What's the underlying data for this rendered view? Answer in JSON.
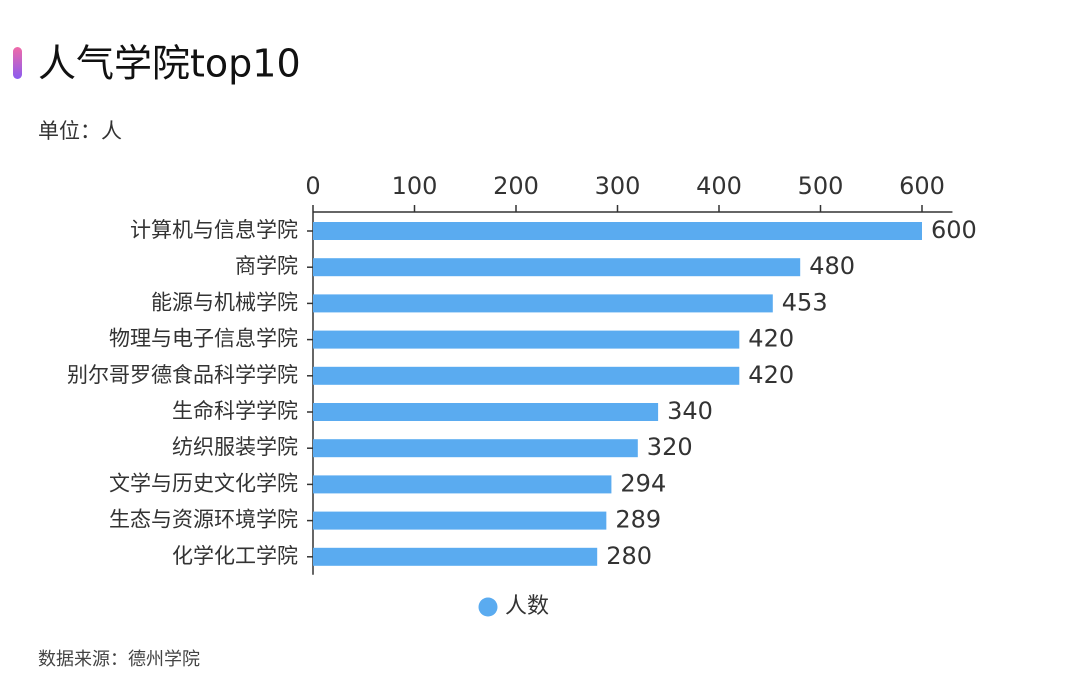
{
  "chart_data": {
    "type": "bar",
    "orientation": "horizontal",
    "title": "人气学院top10",
    "subtitle": "单位：人",
    "source": "数据来源：德州学院",
    "categories": [
      "计算机与信息学院",
      "商学院",
      "能源与机械学院",
      "物理与电子信息学院",
      "别尔哥罗德食品科学学院",
      "生命科学学院",
      "纺织服装学院",
      "文学与历史文化学院",
      "生态与资源环境学院",
      "化学化工学院"
    ],
    "series": [
      {
        "name": "人数",
        "color": "#5aabf0",
        "values": [
          600,
          480,
          453,
          420,
          420,
          340,
          320,
          294,
          289,
          280
        ]
      }
    ],
    "xlim": [
      0,
      630
    ],
    "xticks": [
      0,
      100,
      200,
      300,
      400,
      500,
      600
    ],
    "legend": "bottom"
  }
}
